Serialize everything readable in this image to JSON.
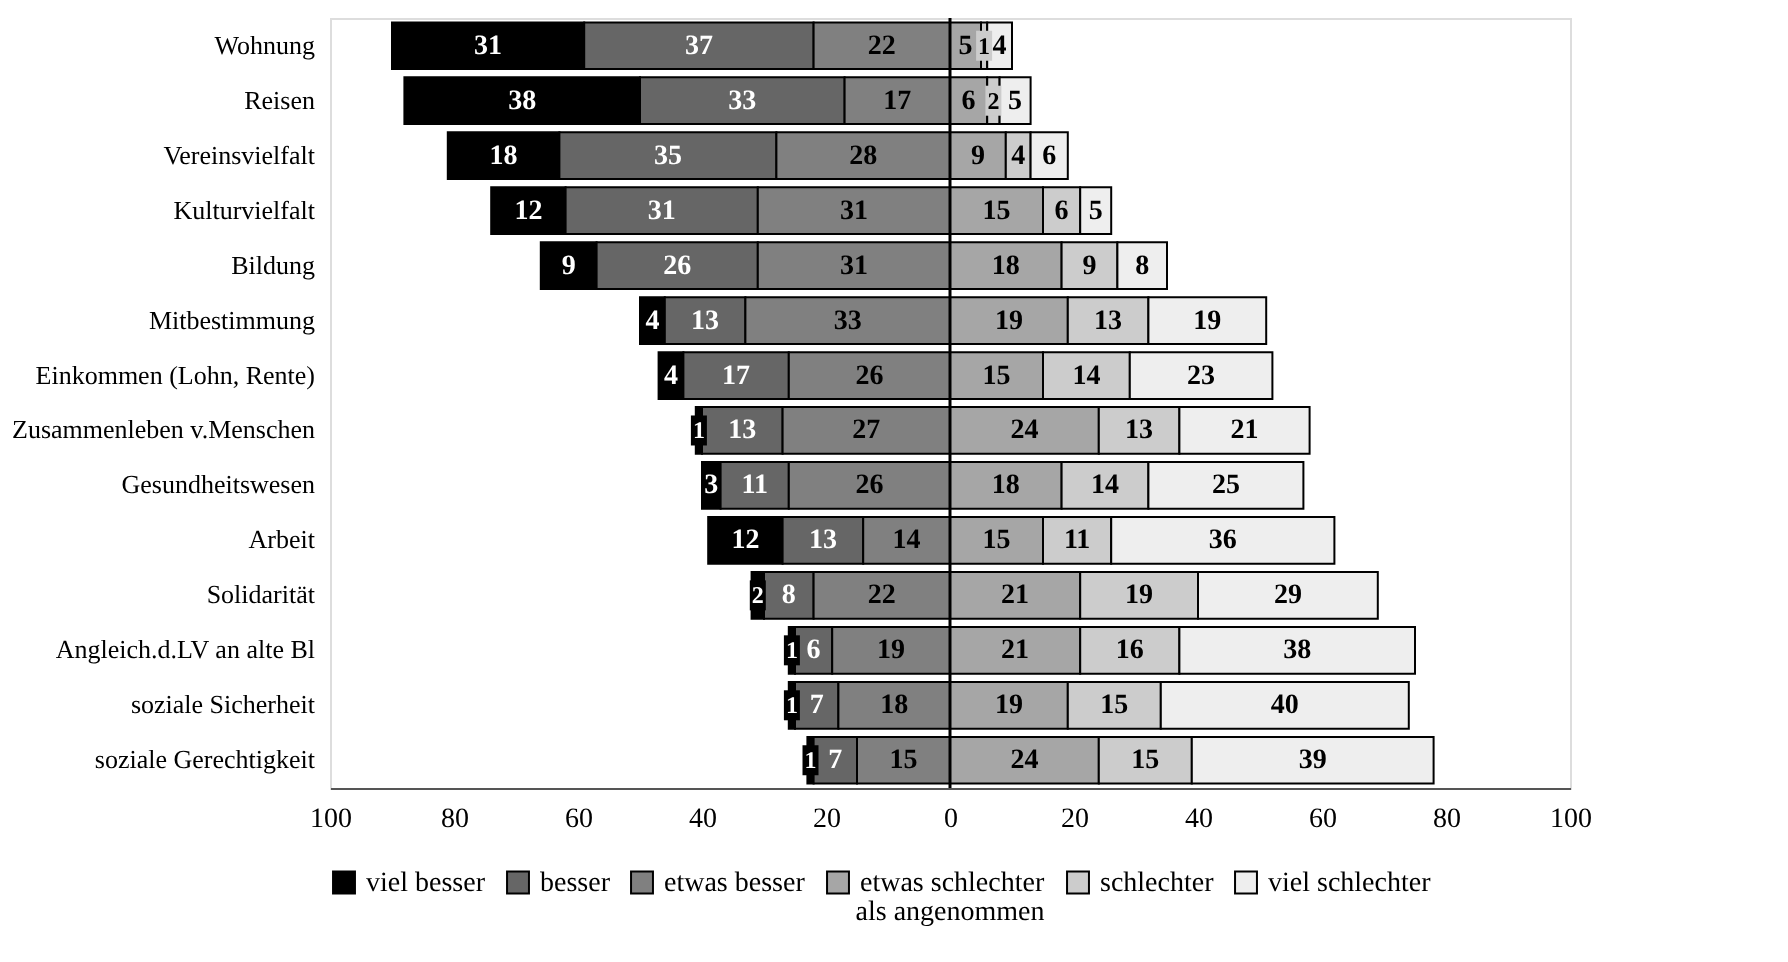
{
  "chart_data": {
    "type": "bar",
    "orientation": "horizontal",
    "data_labels": true,
    "categories": [
      "Wohnung",
      "Reisen",
      "Vereinsvielfalt",
      "Kulturvielfalt",
      "Bildung",
      "Mitbestimmung",
      "Einkommen (Lohn, Rente)",
      "Zusammenleben v.Menschen",
      "Gesundheitswesen",
      "Arbeit",
      "Solidarität",
      "Angleich.d.LV an alte Bl",
      "soziale Sicherheit",
      "soziale Gerechtigkeit"
    ],
    "series": [
      {
        "name": "viel besser",
        "color": "#000000",
        "values": [
          31,
          38,
          18,
          12,
          9,
          4,
          4,
          1,
          3,
          12,
          2,
          1,
          1,
          1
        ],
        "base": [
          -90,
          -88,
          -81,
          -74,
          -66,
          -50,
          -47,
          -41,
          -40,
          -39,
          -32,
          -26,
          -26,
          -23
        ]
      },
      {
        "name": "besser",
        "color": "#666666",
        "values": [
          37,
          33,
          35,
          31,
          26,
          13,
          17,
          13,
          11,
          13,
          8,
          6,
          7,
          7
        ],
        "base": [
          -59,
          -50,
          -63,
          -62,
          -57,
          -46,
          -43,
          -40,
          -37,
          -27,
          -30,
          -25,
          -25,
          -22
        ]
      },
      {
        "name": "etwas besser",
        "color": "#808080",
        "values": [
          22,
          17,
          28,
          31,
          31,
          33,
          26,
          27,
          26,
          14,
          22,
          19,
          18,
          15
        ],
        "base": [
          -22,
          -17,
          -28,
          -31,
          -31,
          -33,
          -26,
          -27,
          -26,
          -14,
          -22,
          -19,
          -18,
          -15
        ]
      },
      {
        "name": "etwas schlechter",
        "color": "#a6a6a6",
        "values": [
          5,
          6,
          9,
          15,
          18,
          19,
          15,
          24,
          18,
          15,
          21,
          21,
          19,
          24
        ],
        "base": [
          0,
          0,
          0,
          0,
          0,
          0,
          0,
          0,
          0,
          0,
          0,
          0,
          0,
          0
        ]
      },
      {
        "name": "schlechter",
        "color": "#cccccc",
        "values": [
          1,
          2,
          4,
          6,
          9,
          13,
          14,
          13,
          14,
          11,
          19,
          16,
          15,
          15
        ],
        "base": [
          5,
          6,
          9,
          15,
          18,
          19,
          15,
          24,
          18,
          15,
          21,
          21,
          19,
          24
        ]
      },
      {
        "name": "viel schlechter",
        "color": "#eeeeee",
        "values": [
          4,
          5,
          6,
          5,
          8,
          19,
          23,
          21,
          25,
          36,
          29,
          38,
          40,
          39
        ],
        "base": [
          6,
          8,
          13,
          21,
          27,
          32,
          29,
          37,
          32,
          26,
          40,
          37,
          34,
          39
        ]
      }
    ],
    "xlim": [
      -100,
      100
    ],
    "xticks": [
      {
        "value": -100,
        "label": "100"
      },
      {
        "value": -80,
        "label": "80"
      },
      {
        "value": -60,
        "label": "60"
      },
      {
        "value": -40,
        "label": "40"
      },
      {
        "value": -20,
        "label": "20"
      },
      0,
      20,
      40,
      60,
      80,
      100
    ],
    "ref_lines": [
      {
        "axis": "x",
        "value": 0,
        "color": "#000000"
      }
    ],
    "annotations": [
      "als angenommen"
    ],
    "legend": "bottom",
    "grid": false
  }
}
